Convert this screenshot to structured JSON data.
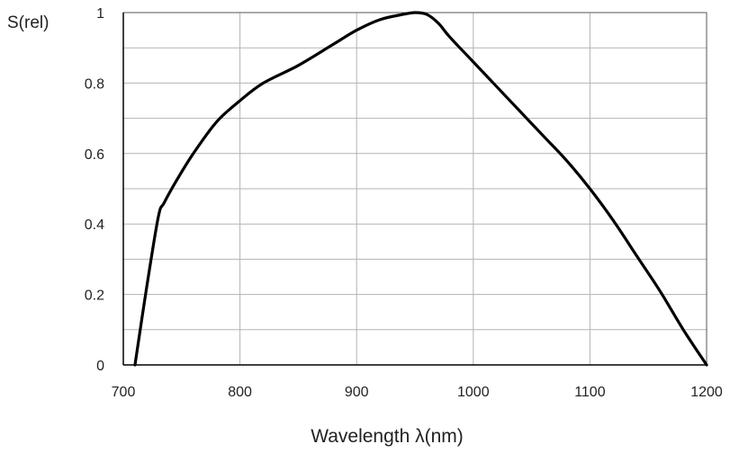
{
  "chart_data": {
    "type": "line",
    "title": "",
    "xlabel": "Wavelength λ(nm)",
    "ylabel": "S(rel)",
    "xlim": [
      700,
      1200
    ],
    "ylim": [
      0,
      1
    ],
    "x_ticks": [
      700,
      800,
      900,
      1000,
      1100,
      1200
    ],
    "y_ticks": [
      0,
      0.2,
      0.4,
      0.6,
      0.8,
      1
    ],
    "grid": true,
    "legend": "none",
    "series": [
      {
        "color": "#000000",
        "x": [
          710,
          720,
          730,
          735,
          745,
          760,
          780,
          800,
          820,
          850,
          880,
          900,
          920,
          940,
          950,
          960,
          970,
          980,
          1000,
          1020,
          1040,
          1060,
          1080,
          1100,
          1120,
          1140,
          1160,
          1180,
          1200
        ],
        "y": [
          0.0,
          0.22,
          0.42,
          0.46,
          0.52,
          0.6,
          0.69,
          0.75,
          0.8,
          0.85,
          0.91,
          0.95,
          0.98,
          0.995,
          1.0,
          0.995,
          0.97,
          0.93,
          0.86,
          0.79,
          0.72,
          0.65,
          0.58,
          0.5,
          0.41,
          0.31,
          0.21,
          0.1,
          0.0
        ]
      }
    ],
    "axis_line_color": "#000000",
    "grid_color": "#b3b3b3",
    "text_color": "#222222"
  }
}
